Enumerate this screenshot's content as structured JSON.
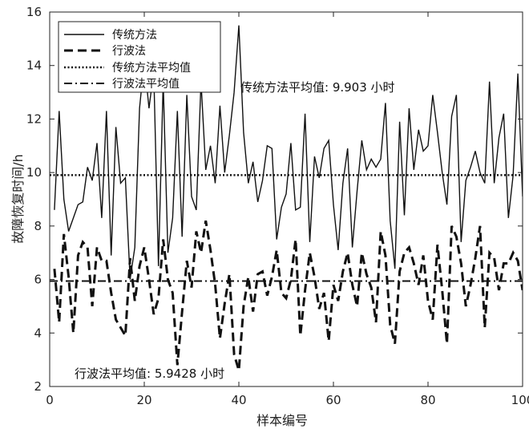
{
  "chart_data": {
    "type": "line",
    "title": "",
    "xlabel": "样本编号",
    "ylabel": "故障恢复时间/h",
    "xlim": [
      0,
      100
    ],
    "ylim": [
      2,
      16
    ],
    "xticks": [
      0,
      20,
      40,
      60,
      80,
      100
    ],
    "yticks": [
      2,
      4,
      6,
      8,
      10,
      12,
      14,
      16
    ],
    "grid": false,
    "legend_position": "top-left",
    "legend": [
      "传统方法",
      "行波法",
      "传统方法平均值",
      "行波法平均值"
    ],
    "annotations": [
      {
        "text": "传统方法平均值: 9.903 小时",
        "x": 40,
        "y": 13.2
      },
      {
        "text": "行波法平均值: 5.9428 小时",
        "x": 5,
        "y": 2.4
      }
    ],
    "x": [
      1,
      2,
      3,
      4,
      5,
      6,
      7,
      8,
      9,
      10,
      11,
      12,
      13,
      14,
      15,
      16,
      17,
      18,
      19,
      20,
      21,
      22,
      23,
      24,
      25,
      26,
      27,
      28,
      29,
      30,
      31,
      32,
      33,
      34,
      35,
      36,
      37,
      38,
      39,
      40,
      41,
      42,
      43,
      44,
      45,
      46,
      47,
      48,
      49,
      50,
      51,
      52,
      53,
      54,
      55,
      56,
      57,
      58,
      59,
      60,
      61,
      62,
      63,
      64,
      65,
      66,
      67,
      68,
      69,
      70,
      71,
      72,
      73,
      74,
      75,
      76,
      77,
      78,
      79,
      80,
      81,
      82,
      83,
      84,
      85,
      86,
      87,
      88,
      89,
      90,
      91,
      92,
      93,
      94,
      95,
      96,
      97,
      98,
      99,
      100
    ],
    "series": [
      {
        "name": "传统方法",
        "style": "solid",
        "values": [
          8.6,
          12.3,
          9.0,
          7.8,
          8.3,
          8.8,
          8.9,
          10.2,
          9.7,
          11.1,
          8.3,
          12.3,
          6.9,
          11.7,
          9.6,
          9.8,
          6.0,
          7.2,
          12.4,
          14.2,
          12.4,
          13.8,
          6.5,
          13.4,
          7.0,
          8.3,
          12.3,
          7.6,
          12.9,
          9.1,
          8.6,
          13.4,
          10.1,
          11.0,
          9.6,
          12.5,
          10.0,
          11.4,
          13.0,
          15.5,
          11.5,
          9.6,
          10.4,
          8.9,
          9.7,
          11.0,
          10.9,
          7.5,
          8.7,
          9.2,
          11.1,
          8.6,
          8.7,
          12.2,
          7.4,
          10.6,
          9.8,
          10.9,
          11.2,
          8.8,
          7.1,
          9.6,
          10.9,
          7.2,
          9.3,
          11.2,
          10.1,
          10.5,
          10.2,
          10.5,
          12.6,
          8.2,
          6.4,
          11.9,
          8.4,
          12.4,
          10.1,
          11.6,
          10.8,
          11.0,
          12.9,
          11.5,
          10.0,
          8.8,
          12.1,
          12.9,
          7.4,
          9.7,
          10.2,
          10.8,
          10.0,
          9.6,
          13.4,
          9.6,
          11.3,
          12.2,
          8.3,
          9.9,
          13.7,
          9.1
        ]
      },
      {
        "name": "行波法",
        "style": "dashed",
        "values": [
          6.4,
          4.4,
          7.7,
          6.1,
          4.0,
          6.9,
          7.4,
          7.2,
          5.0,
          7.2,
          6.7,
          6.7,
          5.5,
          4.5,
          4.2,
          3.9,
          6.8,
          5.2,
          6.5,
          7.2,
          6.0,
          4.7,
          5.3,
          7.5,
          6.0,
          5.5,
          2.8,
          4.8,
          6.7,
          5.7,
          7.8,
          7.0,
          8.2,
          7.1,
          5.8,
          3.8,
          5.1,
          6.2,
          3.2,
          2.6,
          5.0,
          6.1,
          4.8,
          6.2,
          6.3,
          5.4,
          6.1,
          7.1,
          5.5,
          5.3,
          6.0,
          7.5,
          3.9,
          5.6,
          7.0,
          6.1,
          4.9,
          5.5,
          3.7,
          5.8,
          5.2,
          6.3,
          7.0,
          5.8,
          5.0,
          7.0,
          6.2,
          5.7,
          4.4,
          7.8,
          6.9,
          4.3,
          3.6,
          6.3,
          7.0,
          7.2,
          6.6,
          5.8,
          6.9,
          5.2,
          4.5,
          7.3,
          5.6,
          3.6,
          8.0,
          7.6,
          6.6,
          5.0,
          5.8,
          6.8,
          8.0,
          4.2,
          7.0,
          6.8,
          5.6,
          6.6,
          6.6,
          7.0,
          6.7,
          5.6
        ]
      },
      {
        "name": "传统方法平均值",
        "style": "dotted",
        "constant": 9.903
      },
      {
        "name": "行波法平均值",
        "style": "dashdot",
        "constant": 5.9428
      }
    ]
  }
}
